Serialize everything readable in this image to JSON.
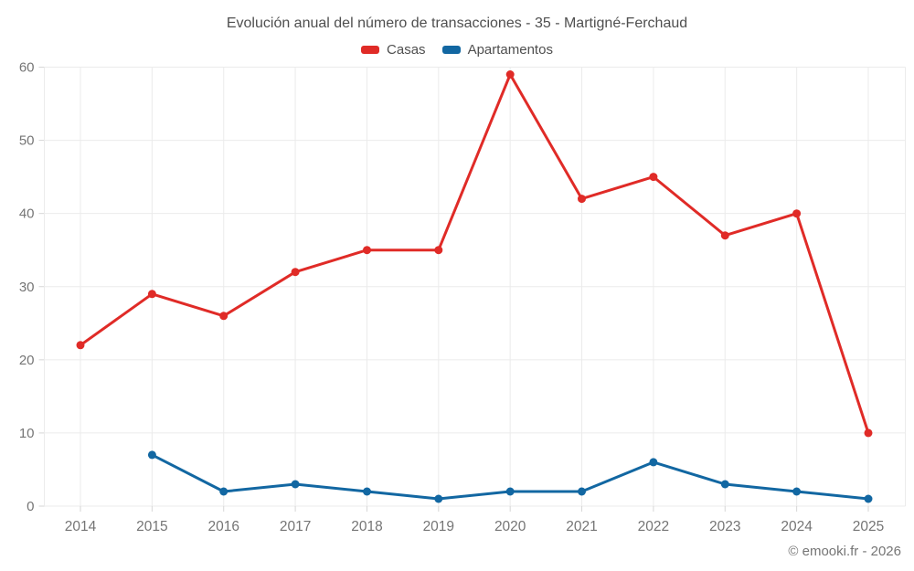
{
  "header": {
    "title": "Evolución anual del número de transacciones - 35 - Martigné-Ferchaud"
  },
  "footer": {
    "text": "© emooki.fr - 2026"
  },
  "theme": {
    "grid_color": "#ebebeb",
    "tick_color": "#d6d6d6",
    "axis_text_color": "#757575",
    "title_text_color": "#4f4f4f",
    "casas_color": "#e02b27",
    "apartamentos_color": "#1267a2",
    "background": "#ffffff"
  },
  "chart_data": {
    "type": "line",
    "title": "Evolución anual del número de transacciones - 35 - Martigné-Ferchaud",
    "categories": [
      "2014",
      "2015",
      "2016",
      "2017",
      "2018",
      "2019",
      "2020",
      "2021",
      "2022",
      "2023",
      "2024",
      "2025"
    ],
    "series": [
      {
        "name": "Casas",
        "color": "#e02b27",
        "values": [
          22,
          29,
          26,
          32,
          35,
          35,
          59,
          42,
          45,
          37,
          40,
          10
        ]
      },
      {
        "name": "Apartamentos",
        "color": "#1267a2",
        "values": [
          null,
          7,
          2,
          3,
          2,
          1,
          2,
          2,
          6,
          3,
          2,
          1
        ]
      }
    ],
    "xlabel": "",
    "ylabel": "",
    "ylim": [
      0,
      60
    ],
    "yticks": [
      0,
      10,
      20,
      30,
      40,
      50,
      60
    ],
    "grid": true,
    "legend_position": "top",
    "footer": "© emooki.fr - 2026"
  }
}
